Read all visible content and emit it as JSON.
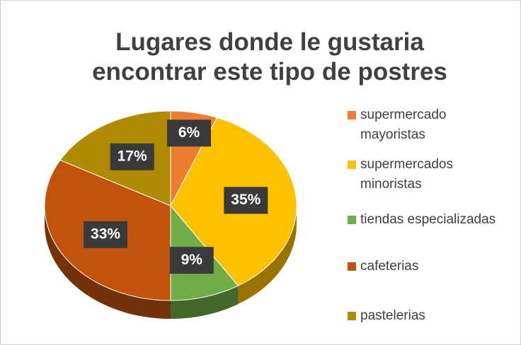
{
  "chart_data": {
    "type": "pie",
    "title": "Lugares donde le gustaria encontrar este tipo de postres",
    "categories": [
      "supermercado mayoristas",
      "supermercados minoristas",
      "tiendas especializadas",
      "cafeterias",
      "pastelerias"
    ],
    "values": [
      6,
      35,
      9,
      33,
      17
    ],
    "value_labels": [
      "6%",
      "35%",
      "9%",
      "33%",
      "17%"
    ],
    "colors": [
      "#ed7d31",
      "#ffc000",
      "#70ad47",
      "#c0540f",
      "#b08a00"
    ],
    "legend": "right"
  }
}
